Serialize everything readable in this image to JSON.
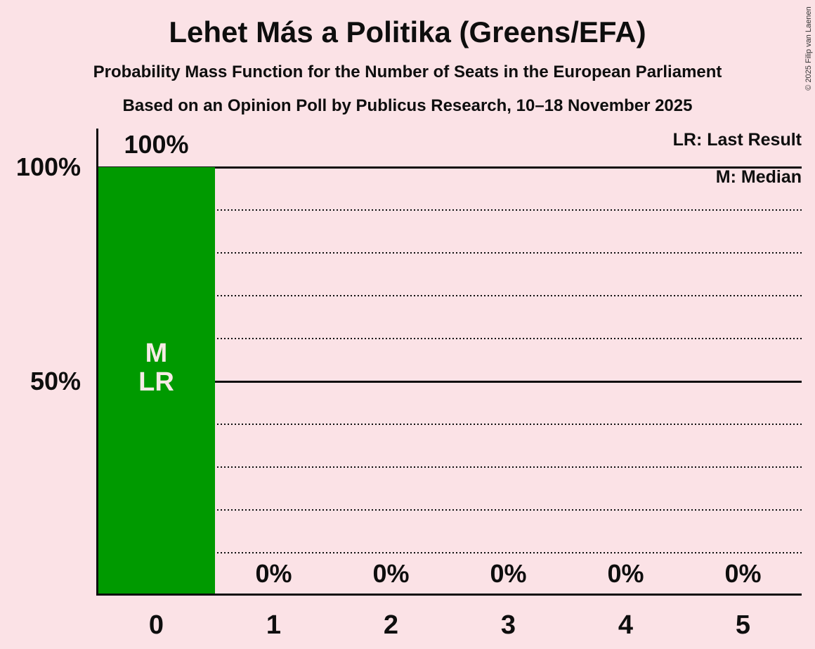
{
  "title": "Lehet Más a Politika (Greens/EFA)",
  "subtitle": "Probability Mass Function for the Number of Seats in the European Parliament",
  "source_line": "Based on an Opinion Poll by Publicus Research, 10–18 November 2025",
  "copyright": "© 2025 Filip van Laenen",
  "legend": {
    "last_result": "LR: Last Result",
    "median": "M: Median"
  },
  "colors": {
    "background": "#fbe2e6",
    "bar": "#009a00",
    "text": "#0e0e0e",
    "bar_label_text": "#f7eae6"
  },
  "chart_data": {
    "type": "bar",
    "title": "Lehet Más a Politika (Greens/EFA)",
    "subtitle": "Probability Mass Function for the Number of Seats in the European Parliament",
    "source": "Based on an Opinion Poll by Publicus Research, 10–18 November 2025",
    "categories": [
      "0",
      "1",
      "2",
      "3",
      "4",
      "5"
    ],
    "values": [
      100,
      0,
      0,
      0,
      0,
      0
    ],
    "value_labels": [
      "100%",
      "0%",
      "0%",
      "0%",
      "0%",
      "0%"
    ],
    "ylim": [
      0,
      100
    ],
    "y_axis_labels": [
      {
        "text": "100%",
        "value": 100
      },
      {
        "text": "50%",
        "value": 50
      }
    ],
    "gridlines_solid": [
      100,
      50
    ],
    "gridlines_dotted": [
      90,
      80,
      70,
      60,
      40,
      30,
      20,
      10
    ],
    "annotations": [
      {
        "category_index": 0,
        "lines": [
          "M",
          "LR"
        ]
      }
    ],
    "legend_position": "top-right",
    "median_seats": 0,
    "last_result_seats": 0
  }
}
